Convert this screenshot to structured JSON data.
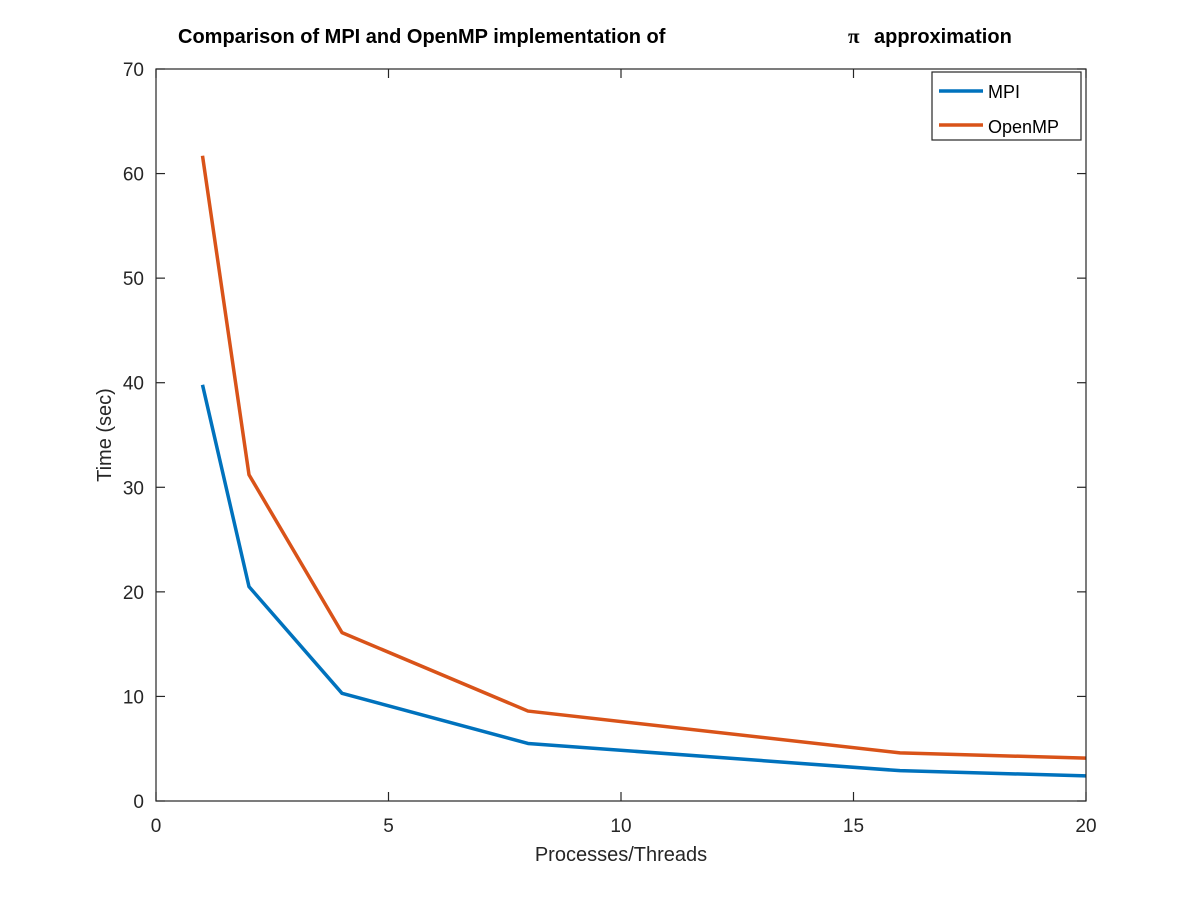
{
  "chart_data": {
    "type": "line",
    "title": "Comparison of MPI and OpenMP implementation of",
    "title_symbol": "π",
    "title_suffix": "approximation",
    "xlabel": "Processes/Threads",
    "ylabel": "Time (sec)",
    "xlim": [
      0,
      20
    ],
    "ylim": [
      0,
      70
    ],
    "xticks": [
      0,
      5,
      10,
      15,
      20
    ],
    "yticks": [
      0,
      10,
      20,
      30,
      40,
      50,
      60,
      70
    ],
    "grid": false,
    "legend_position": "top-right",
    "series": [
      {
        "name": "MPI",
        "color": "#0072BD",
        "x": [
          1,
          2,
          4,
          8,
          16,
          20
        ],
        "y": [
          39.8,
          20.5,
          10.3,
          5.5,
          2.9,
          2.4
        ]
      },
      {
        "name": "OpenMP",
        "color": "#D95319",
        "x": [
          1,
          2,
          4,
          8,
          16,
          20
        ],
        "y": [
          61.7,
          31.2,
          16.1,
          8.6,
          4.6,
          4.1
        ]
      }
    ]
  }
}
